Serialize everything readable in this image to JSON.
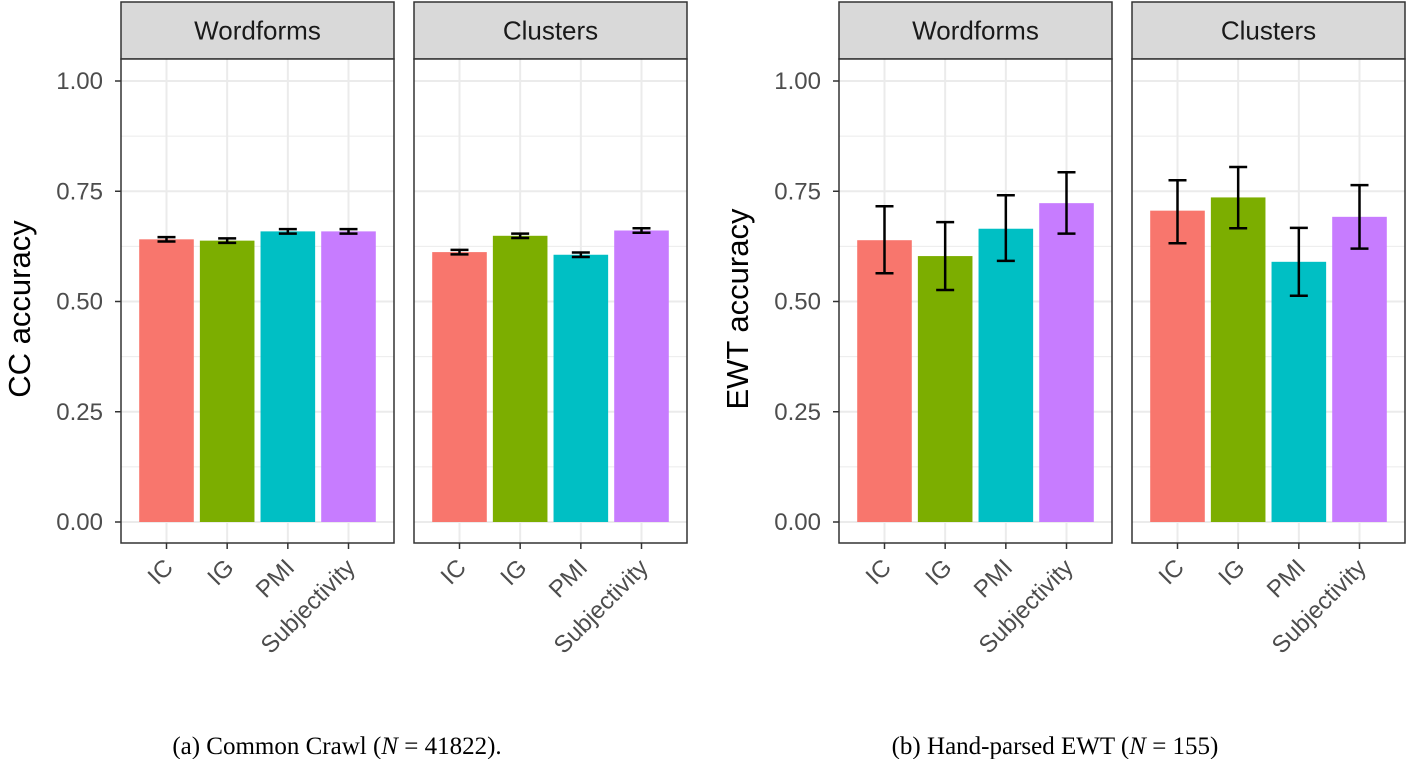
{
  "colors": {
    "IC": "#F8766D",
    "IG": "#7CAE00",
    "PMI": "#00BFC4",
    "Subjectivity": "#C77CFF",
    "strip_fill": "#D9D9D9",
    "grid": "#EBEBEB",
    "panel_border": "#333333"
  },
  "chart_data": [
    {
      "type": "bar",
      "caption": {
        "prefix": "(a) Common Crawl (",
        "var": "N",
        "eq": " = ",
        "num": "41822",
        "suffix": ")."
      },
      "ylabel": "CC accuracy",
      "ylim": [
        0,
        1.05
      ],
      "yticks": [
        "0.00",
        "0.25",
        "0.50",
        "0.75",
        "1.00"
      ],
      "grid": true,
      "facets": [
        {
          "strip": "Wordforms",
          "categories": [
            "IC",
            "IG",
            "PMI",
            "Subjectivity"
          ],
          "values": [
            0.641,
            0.638,
            0.659,
            0.659
          ],
          "err_low": [
            0.636,
            0.633,
            0.654,
            0.654
          ],
          "err_high": [
            0.646,
            0.643,
            0.664,
            0.664
          ]
        },
        {
          "strip": "Clusters",
          "categories": [
            "IC",
            "IG",
            "PMI",
            "Subjectivity"
          ],
          "values": [
            0.612,
            0.649,
            0.606,
            0.661
          ],
          "err_low": [
            0.607,
            0.644,
            0.601,
            0.656
          ],
          "err_high": [
            0.617,
            0.654,
            0.611,
            0.666
          ]
        }
      ]
    },
    {
      "type": "bar",
      "caption": {
        "prefix": "(b) Hand-parsed EWT (",
        "var": "N",
        "eq": " = ",
        "num": "155",
        "suffix": ")"
      },
      "ylabel": "EWT accuracy",
      "ylim": [
        0,
        1.05
      ],
      "yticks": [
        "0.00",
        "0.25",
        "0.50",
        "0.75",
        "1.00"
      ],
      "grid": true,
      "facets": [
        {
          "strip": "Wordforms",
          "categories": [
            "IC",
            "IG",
            "PMI",
            "Subjectivity"
          ],
          "values": [
            0.639,
            0.603,
            0.665,
            0.723
          ],
          "err_low": [
            0.564,
            0.526,
            0.592,
            0.654
          ],
          "err_high": [
            0.716,
            0.68,
            0.741,
            0.793
          ]
        },
        {
          "strip": "Clusters",
          "categories": [
            "IC",
            "IG",
            "PMI",
            "Subjectivity"
          ],
          "values": [
            0.706,
            0.736,
            0.59,
            0.692
          ],
          "err_low": [
            0.632,
            0.666,
            0.513,
            0.62
          ],
          "err_high": [
            0.775,
            0.805,
            0.667,
            0.764
          ]
        }
      ]
    }
  ]
}
